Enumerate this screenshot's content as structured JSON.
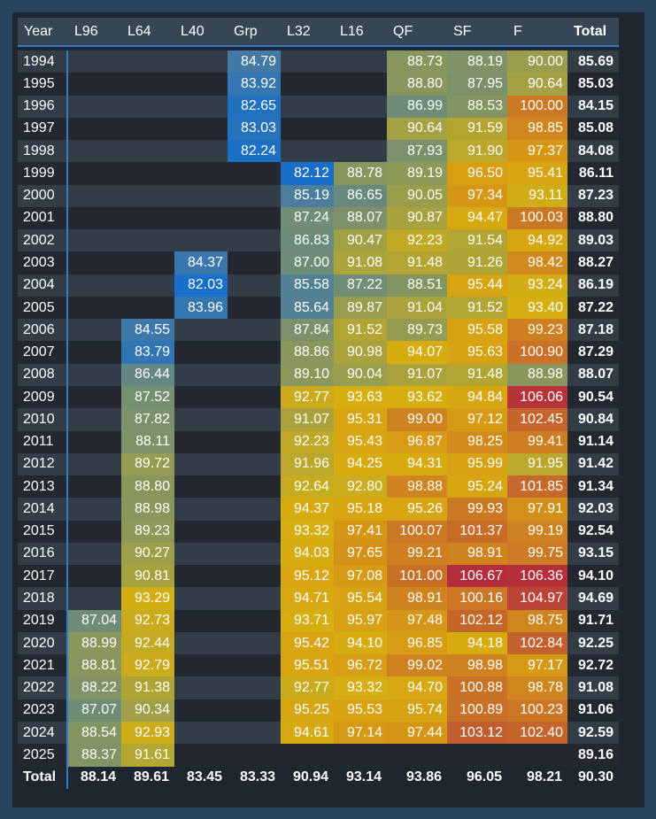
{
  "table": {
    "columns": [
      "Year",
      "L96",
      "L64",
      "L40",
      "Grp",
      "L32",
      "L16",
      "QF",
      "SF",
      "F",
      "Total"
    ],
    "rows": [
      [
        "1994",
        "",
        "",
        "",
        "84.79",
        "",
        "",
        "88.73",
        "88.19",
        "90.00",
        "85.69"
      ],
      [
        "1995",
        "",
        "",
        "",
        "83.92",
        "",
        "",
        "88.80",
        "87.95",
        "90.64",
        "85.03"
      ],
      [
        "1996",
        "",
        "",
        "",
        "82.65",
        "",
        "",
        "86.99",
        "88.53",
        "100.00",
        "84.15"
      ],
      [
        "1997",
        "",
        "",
        "",
        "83.03",
        "",
        "",
        "90.64",
        "91.59",
        "98.85",
        "85.08"
      ],
      [
        "1998",
        "",
        "",
        "",
        "82.24",
        "",
        "",
        "87.93",
        "91.90",
        "97.37",
        "84.08"
      ],
      [
        "1999",
        "",
        "",
        "",
        "",
        "82.12",
        "88.78",
        "89.19",
        "96.50",
        "95.41",
        "86.11"
      ],
      [
        "2000",
        "",
        "",
        "",
        "",
        "85.19",
        "86.65",
        "90.05",
        "97.34",
        "93.11",
        "87.23"
      ],
      [
        "2001",
        "",
        "",
        "",
        "",
        "87.24",
        "88.07",
        "90.87",
        "94.47",
        "100.03",
        "88.80"
      ],
      [
        "2002",
        "",
        "",
        "",
        "",
        "86.83",
        "90.47",
        "92.23",
        "91.54",
        "94.92",
        "89.03"
      ],
      [
        "2003",
        "",
        "",
        "84.37",
        "",
        "87.00",
        "91.08",
        "91.48",
        "91.26",
        "98.42",
        "88.27"
      ],
      [
        "2004",
        "",
        "",
        "82.03",
        "",
        "85.58",
        "87.22",
        "88.51",
        "95.44",
        "93.24",
        "86.19"
      ],
      [
        "2005",
        "",
        "",
        "83.96",
        "",
        "85.64",
        "89.87",
        "91.04",
        "91.52",
        "93.40",
        "87.22"
      ],
      [
        "2006",
        "",
        "84.55",
        "",
        "",
        "87.84",
        "91.52",
        "89.73",
        "95.58",
        "99.23",
        "87.18"
      ],
      [
        "2007",
        "",
        "83.79",
        "",
        "",
        "88.86",
        "90.98",
        "94.07",
        "95.63",
        "100.90",
        "87.29"
      ],
      [
        "2008",
        "",
        "86.44",
        "",
        "",
        "89.10",
        "90.04",
        "91.07",
        "91.48",
        "88.98",
        "88.07"
      ],
      [
        "2009",
        "",
        "87.52",
        "",
        "",
        "92.77",
        "93.63",
        "93.62",
        "94.84",
        "106.06",
        "90.54"
      ],
      [
        "2010",
        "",
        "87.82",
        "",
        "",
        "91.07",
        "95.31",
        "99.00",
        "97.12",
        "102.45",
        "90.84"
      ],
      [
        "2011",
        "",
        "88.11",
        "",
        "",
        "92.23",
        "95.43",
        "96.87",
        "98.25",
        "99.41",
        "91.14"
      ],
      [
        "2012",
        "",
        "89.72",
        "",
        "",
        "91.96",
        "94.25",
        "94.31",
        "95.99",
        "91.95",
        "91.42"
      ],
      [
        "2013",
        "",
        "88.80",
        "",
        "",
        "92.64",
        "92.80",
        "98.88",
        "95.24",
        "101.85",
        "91.34"
      ],
      [
        "2014",
        "",
        "88.98",
        "",
        "",
        "94.37",
        "95.18",
        "95.26",
        "99.93",
        "97.91",
        "92.03"
      ],
      [
        "2015",
        "",
        "89.23",
        "",
        "",
        "93.32",
        "97.41",
        "100.07",
        "101.37",
        "99.19",
        "92.54"
      ],
      [
        "2016",
        "",
        "90.27",
        "",
        "",
        "94.03",
        "97.65",
        "99.21",
        "98.91",
        "99.75",
        "93.15"
      ],
      [
        "2017",
        "",
        "90.81",
        "",
        "",
        "95.12",
        "97.08",
        "101.00",
        "106.67",
        "106.36",
        "94.10"
      ],
      [
        "2018",
        "",
        "93.29",
        "",
        "",
        "94.71",
        "95.54",
        "98.91",
        "100.16",
        "104.97",
        "94.69"
      ],
      [
        "2019",
        "87.04",
        "92.73",
        "",
        "",
        "93.71",
        "95.97",
        "97.48",
        "102.12",
        "98.75",
        "91.71"
      ],
      [
        "2020",
        "88.99",
        "92.44",
        "",
        "",
        "95.42",
        "94.10",
        "96.85",
        "94.18",
        "102.84",
        "92.25"
      ],
      [
        "2021",
        "88.81",
        "92.79",
        "",
        "",
        "95.51",
        "96.72",
        "99.02",
        "98.98",
        "97.17",
        "92.72"
      ],
      [
        "2022",
        "88.22",
        "91.38",
        "",
        "",
        "92.77",
        "93.32",
        "94.70",
        "100.88",
        "98.78",
        "91.08"
      ],
      [
        "2023",
        "87.07",
        "90.34",
        "",
        "",
        "95.25",
        "95.53",
        "95.74",
        "100.89",
        "100.23",
        "91.06"
      ],
      [
        "2024",
        "88.54",
        "92.93",
        "",
        "",
        "94.61",
        "97.14",
        "97.44",
        "103.12",
        "102.40",
        "92.59"
      ],
      [
        "2025",
        "88.37",
        "91.61",
        "",
        "",
        "",
        "",
        "",
        "",
        "",
        "89.16"
      ]
    ],
    "total_row": [
      "Total",
      "88.14",
      "89.61",
      "83.45",
      "83.33",
      "90.94",
      "93.14",
      "93.86",
      "96.05",
      "98.21",
      "90.30"
    ]
  },
  "colors": {
    "window_bg": "#26445e",
    "table_bg": "#1e2630",
    "header_bg": "#364655",
    "row_dark": "#222730",
    "row_light": "#323d47",
    "accent_line": "#2f7fc8"
  }
}
